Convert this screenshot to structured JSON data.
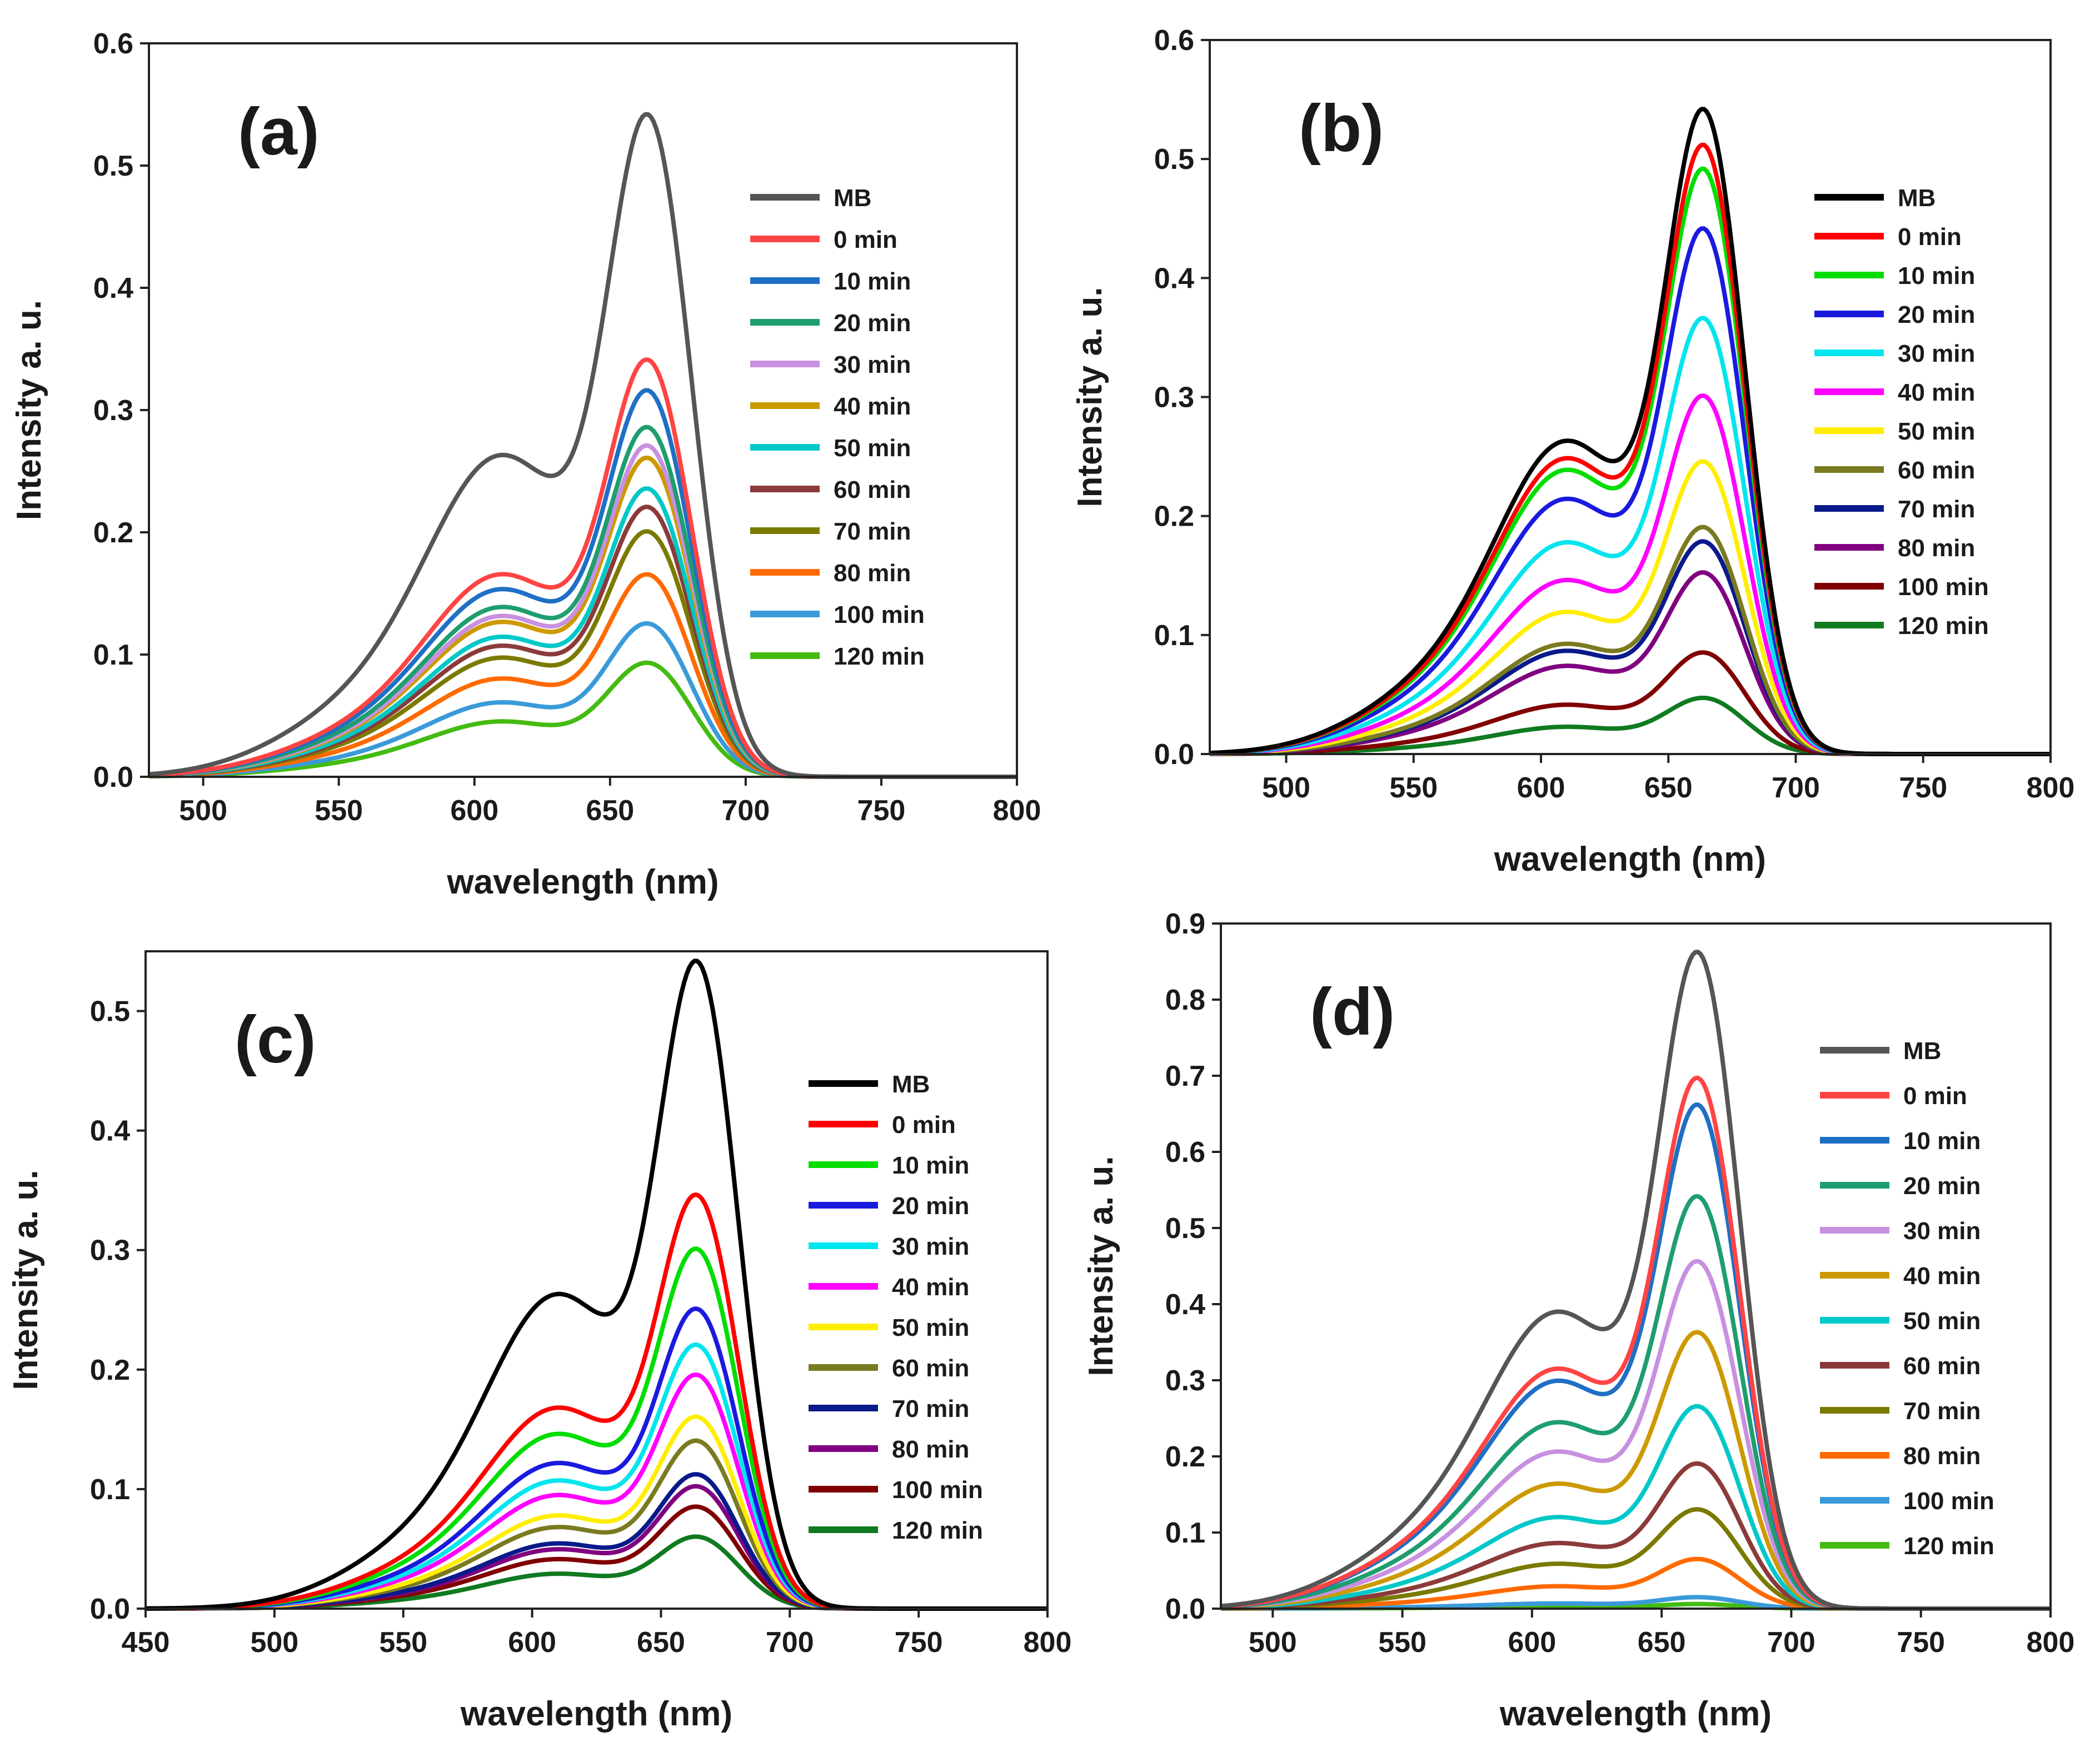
{
  "chart_data": [
    {
      "panel": "(a)",
      "type": "line",
      "xlabel": "wavelength (nm)",
      "ylabel": "Intensity a. u.",
      "xlim": [
        480,
        800
      ],
      "ylim": [
        0,
        0.6
      ],
      "xticks": [
        500,
        550,
        600,
        650,
        700,
        750,
        800
      ],
      "yticks": [
        "0.0",
        "0.1",
        "0.2",
        "0.3",
        "0.4",
        "0.5",
        "0.6"
      ],
      "legend": "center-right",
      "peak_nm": 665,
      "shoulder_ratio": 0.5,
      "series": [
        {
          "name": "MB",
          "peak": 0.54,
          "color": "#555555"
        },
        {
          "name": "0 min",
          "peak": 0.34,
          "color": "#ff4444"
        },
        {
          "name": "10 min",
          "peak": 0.315,
          "color": "#1f6fc5"
        },
        {
          "name": "20 min",
          "peak": 0.285,
          "color": "#1e9e6e"
        },
        {
          "name": "30 min",
          "peak": 0.27,
          "color": "#c890e0"
        },
        {
          "name": "40 min",
          "peak": 0.26,
          "color": "#cc9a00"
        },
        {
          "name": "50 min",
          "peak": 0.235,
          "color": "#00c8c8"
        },
        {
          "name": "60 min",
          "peak": 0.22,
          "color": "#8b3a3a"
        },
        {
          "name": "70 min",
          "peak": 0.2,
          "color": "#7a7a00"
        },
        {
          "name": "80 min",
          "peak": 0.165,
          "color": "#ff6a00"
        },
        {
          "name": "100 min",
          "peak": 0.125,
          "color": "#3a9ad9"
        },
        {
          "name": "120 min",
          "peak": 0.093,
          "color": "#44bb11"
        }
      ]
    },
    {
      "panel": "(b)",
      "type": "line",
      "xlabel": "wavelength (nm)",
      "ylabel": "Intensity a. u.",
      "xlim": [
        470,
        800
      ],
      "ylim": [
        0,
        0.6
      ],
      "xticks": [
        500,
        550,
        600,
        650,
        700,
        750,
        800
      ],
      "yticks": [
        "0.0",
        "0.1",
        "0.2",
        "0.3",
        "0.4",
        "0.5",
        "0.6"
      ],
      "legend": "center-right",
      "peak_nm": 665,
      "shoulder_ratio": 0.5,
      "series": [
        {
          "name": "MB",
          "peak": 0.54,
          "color": "#000000"
        },
        {
          "name": "0 min",
          "peak": 0.51,
          "color": "#ff0000"
        },
        {
          "name": "10 min",
          "peak": 0.49,
          "color": "#00dd00"
        },
        {
          "name": "20 min",
          "peak": 0.44,
          "color": "#1a1adf"
        },
        {
          "name": "30 min",
          "peak": 0.365,
          "color": "#00e5ee"
        },
        {
          "name": "40 min",
          "peak": 0.3,
          "color": "#ff00ff"
        },
        {
          "name": "50 min",
          "peak": 0.245,
          "color": "#ffee00"
        },
        {
          "name": "60 min",
          "peak": 0.19,
          "color": "#7a7a20"
        },
        {
          "name": "70 min",
          "peak": 0.178,
          "color": "#0a1a8a"
        },
        {
          "name": "80 min",
          "peak": 0.152,
          "color": "#800080"
        },
        {
          "name": "100 min",
          "peak": 0.085,
          "color": "#800000"
        },
        {
          "name": "120 min",
          "peak": 0.047,
          "color": "#107a20"
        }
      ]
    },
    {
      "panel": "(c)",
      "type": "line",
      "xlabel": "wavelength (nm)",
      "ylabel": "Intensity a. u.",
      "xlim": [
        450,
        800
      ],
      "ylim": [
        0,
        0.55
      ],
      "xticks": [
        450,
        500,
        550,
        600,
        650,
        700,
        750,
        800
      ],
      "yticks": [
        "0.0",
        "0.1",
        "0.2",
        "0.3",
        "0.4",
        "0.5"
      ],
      "legend": "center-right",
      "peak_nm": 665,
      "shoulder_ratio": 0.5,
      "series": [
        {
          "name": "MB",
          "peak": 0.54,
          "color": "#000000"
        },
        {
          "name": "0 min",
          "peak": 0.345,
          "color": "#ff0000"
        },
        {
          "name": "10 min",
          "peak": 0.3,
          "color": "#00dd00"
        },
        {
          "name": "20 min",
          "peak": 0.25,
          "color": "#1a1adf"
        },
        {
          "name": "30 min",
          "peak": 0.22,
          "color": "#00e5ee"
        },
        {
          "name": "40 min",
          "peak": 0.195,
          "color": "#ff00ff"
        },
        {
          "name": "50 min",
          "peak": 0.16,
          "color": "#ffee00"
        },
        {
          "name": "60 min",
          "peak": 0.14,
          "color": "#7a7a20"
        },
        {
          "name": "70 min",
          "peak": 0.112,
          "color": "#0a1a8a"
        },
        {
          "name": "80 min",
          "peak": 0.102,
          "color": "#800080"
        },
        {
          "name": "100 min",
          "peak": 0.085,
          "color": "#800000"
        },
        {
          "name": "120 min",
          "peak": 0.06,
          "color": "#107a20"
        }
      ]
    },
    {
      "panel": "(d)",
      "type": "line",
      "xlabel": "wavelength (nm)",
      "ylabel": "Intensity a. u.",
      "xlim": [
        480,
        800
      ],
      "ylim": [
        0,
        0.9
      ],
      "xticks": [
        500,
        550,
        600,
        650,
        700,
        750,
        800
      ],
      "yticks": [
        "0.0",
        "0.1",
        "0.2",
        "0.3",
        "0.4",
        "0.5",
        "0.6",
        "0.7",
        "0.8",
        "0.9"
      ],
      "legend": "center-right",
      "peak_nm": 665,
      "shoulder_ratio": 0.46,
      "series": [
        {
          "name": "MB",
          "peak": 0.86,
          "color": "#555555"
        },
        {
          "name": "0 min",
          "peak": 0.695,
          "color": "#ff4444"
        },
        {
          "name": "10 min",
          "peak": 0.66,
          "color": "#1f6fc5"
        },
        {
          "name": "20 min",
          "peak": 0.54,
          "color": "#1e9e6e"
        },
        {
          "name": "30 min",
          "peak": 0.455,
          "color": "#c890e0"
        },
        {
          "name": "40 min",
          "peak": 0.362,
          "color": "#cc9a00"
        },
        {
          "name": "50 min",
          "peak": 0.265,
          "color": "#00c8c8"
        },
        {
          "name": "60 min",
          "peak": 0.19,
          "color": "#8b3a3a"
        },
        {
          "name": "70 min",
          "peak": 0.13,
          "color": "#7a7a00"
        },
        {
          "name": "80 min",
          "peak": 0.065,
          "color": "#ff6a00"
        },
        {
          "name": "100 min",
          "peak": 0.015,
          "color": "#3a9ad9"
        },
        {
          "name": "120 min",
          "peak": 0.006,
          "color": "#44bb11"
        }
      ]
    }
  ]
}
